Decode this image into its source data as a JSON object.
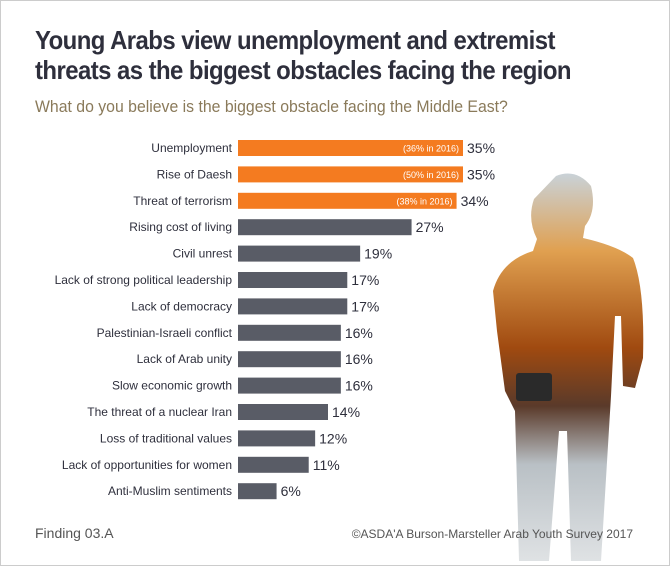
{
  "title": "Young Arabs view unemployment and extremist threats as the biggest obstacles facing the region",
  "subtitle": "What do you believe is the biggest obstacle facing the Middle East?",
  "footer_left": "Finding 03.A",
  "footer_right": "©ASDA'A Burson-Marsteller Arab Youth Survey 2017",
  "colors": {
    "highlight": "#f47b20",
    "default": "#595c66"
  },
  "chart_data": {
    "type": "bar",
    "orientation": "horizontal",
    "title": "What do you believe is the biggest obstacle facing the Middle East?",
    "unit": "%",
    "categories": [
      "Unemployment",
      "Rise of Daesh",
      "Threat of terrorism",
      "Rising cost of living",
      "Civil unrest",
      "Lack of strong political leadership",
      "Lack of democracy",
      "Palestinian-Israeli conflict",
      "Lack of Arab unity",
      "Slow economic growth",
      "The threat of a nuclear Iran",
      "Loss of traditional values",
      "Lack of opportunities for women",
      "Anti-Muslim sentiments"
    ],
    "values": [
      35,
      35,
      34,
      27,
      19,
      17,
      17,
      16,
      16,
      16,
      14,
      12,
      11,
      6
    ],
    "highlighted": [
      true,
      true,
      true,
      false,
      false,
      false,
      false,
      false,
      false,
      false,
      false,
      false,
      false,
      false
    ],
    "annotations": [
      "(36% in 2016)",
      "(50% in 2016)",
      "(38% in 2016)",
      null,
      null,
      null,
      null,
      null,
      null,
      null,
      null,
      null,
      null,
      null
    ],
    "xlim": [
      0,
      35
    ]
  }
}
